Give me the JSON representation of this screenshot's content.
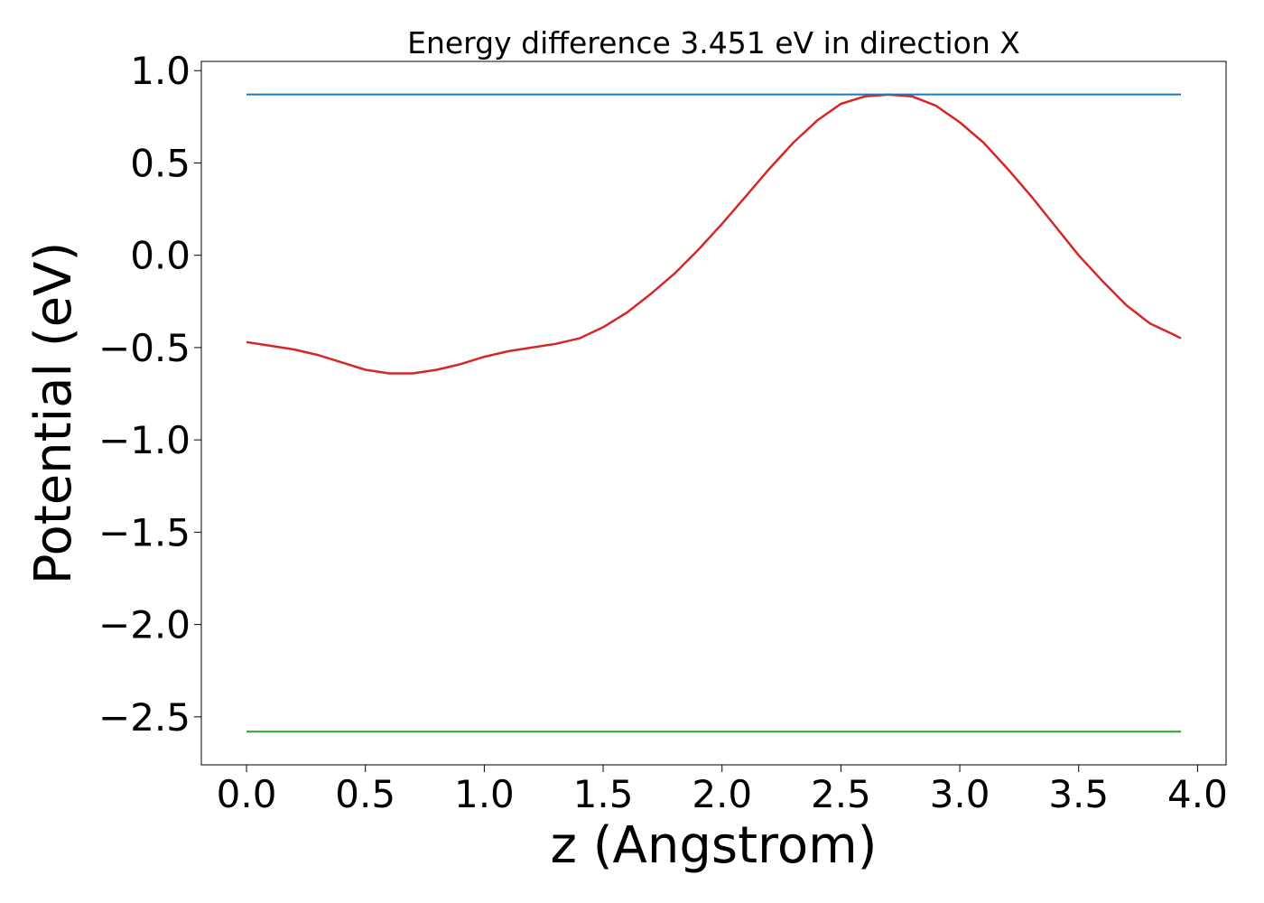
{
  "chart_data": {
    "type": "line",
    "title": "Energy difference 3.451 eV in direction X",
    "xlabel": "z (Angstrom)",
    "ylabel": "Potential (eV)",
    "xlim": [
      -0.19,
      4.12
    ],
    "ylim": [
      -2.76,
      1.05
    ],
    "xticks": [
      0.0,
      0.5,
      1.0,
      1.5,
      2.0,
      2.5,
      3.0,
      3.5,
      4.0
    ],
    "xtick_labels": [
      "0.0",
      "0.5",
      "1.0",
      "1.5",
      "2.0",
      "2.5",
      "3.0",
      "3.5",
      "4.0"
    ],
    "yticks": [
      1.0,
      0.5,
      0.0,
      -0.5,
      -1.0,
      -1.5,
      -2.0,
      -2.5
    ],
    "ytick_labels": [
      "1.0",
      "0.5",
      "0.0",
      "−0.5",
      "−1.0",
      "−1.5",
      "−2.0",
      "−2.5"
    ],
    "grid": false,
    "legend": "none",
    "series": [
      {
        "color": "#d62728",
        "x": [
          0.0,
          0.1,
          0.2,
          0.3,
          0.4,
          0.5,
          0.6,
          0.7,
          0.8,
          0.9,
          1.0,
          1.1,
          1.2,
          1.3,
          1.4,
          1.5,
          1.6,
          1.7,
          1.8,
          1.9,
          2.0,
          2.1,
          2.2,
          2.3,
          2.4,
          2.5,
          2.6,
          2.7,
          2.8,
          2.9,
          3.0,
          3.1,
          3.2,
          3.3,
          3.4,
          3.5,
          3.6,
          3.7,
          3.8,
          3.9,
          3.93
        ],
        "y": [
          -0.47,
          -0.49,
          -0.51,
          -0.54,
          -0.58,
          -0.62,
          -0.64,
          -0.64,
          -0.62,
          -0.59,
          -0.55,
          -0.52,
          -0.5,
          -0.48,
          -0.45,
          -0.39,
          -0.31,
          -0.21,
          -0.1,
          0.03,
          0.17,
          0.32,
          0.47,
          0.61,
          0.73,
          0.82,
          0.86,
          0.87,
          0.86,
          0.81,
          0.72,
          0.61,
          0.47,
          0.32,
          0.16,
          0.0,
          -0.14,
          -0.27,
          -0.37,
          -0.43,
          -0.45
        ]
      },
      {
        "color": "#1f77b4",
        "x": [
          0.0,
          3.93
        ],
        "y": [
          0.871,
          0.871
        ]
      },
      {
        "color": "#2ca02c",
        "x": [
          0.0,
          3.93
        ],
        "y": [
          -2.58,
          -2.58
        ]
      }
    ]
  }
}
